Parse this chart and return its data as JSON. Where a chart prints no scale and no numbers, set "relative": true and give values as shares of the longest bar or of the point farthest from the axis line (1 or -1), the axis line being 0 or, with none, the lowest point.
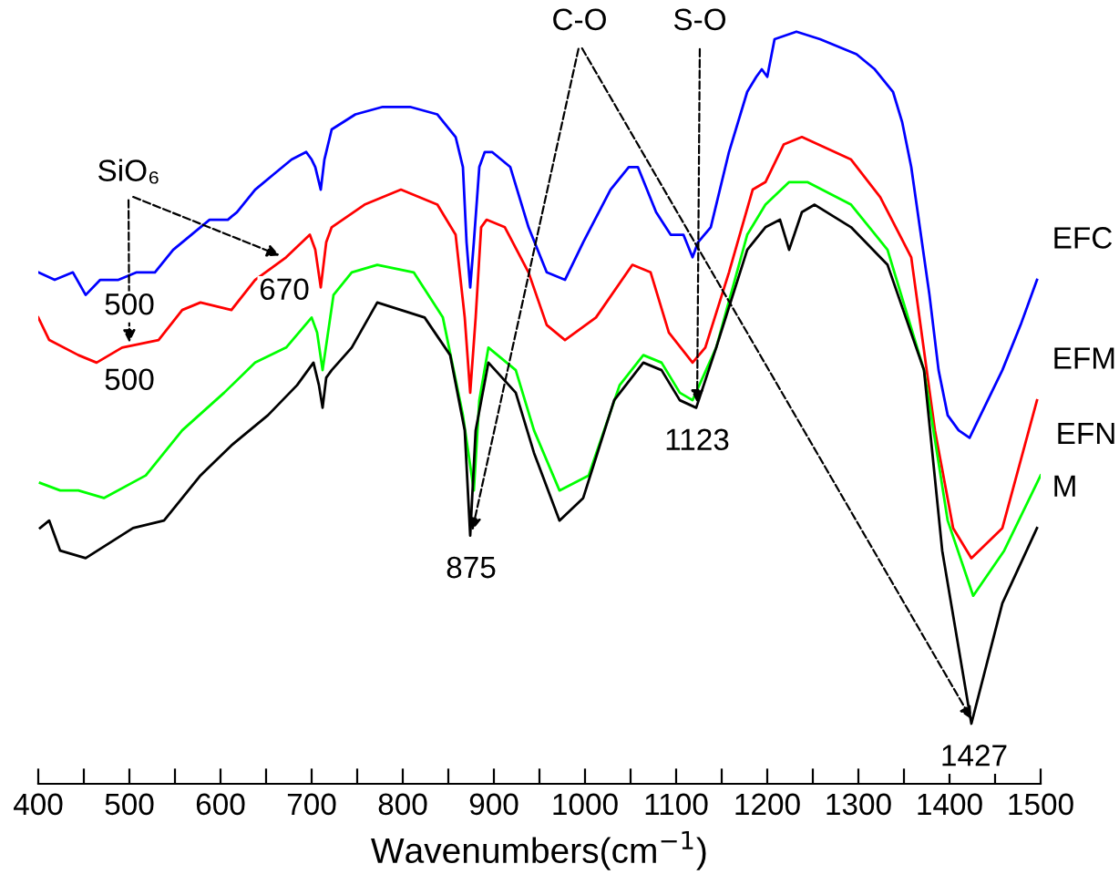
{
  "chart_data": {
    "type": "line",
    "relative": true,
    "xlabel": "Wavenumbers(cm$^{−1}$)",
    "xlim": [
      400,
      1500
    ],
    "xticks": [
      400,
      {
        "value": 450,
        "label": null
      },
      500,
      {
        "value": 550,
        "label": null
      },
      600,
      {
        "value": 650,
        "label": null
      },
      700,
      {
        "value": 750,
        "label": null
      },
      800,
      {
        "value": 850,
        "label": null
      },
      900,
      {
        "value": 950,
        "label": null
      },
      1000,
      {
        "value": 1050,
        "label": null
      },
      1100,
      {
        "value": 1150,
        "label": null
      },
      1200,
      {
        "value": 1250,
        "label": null
      },
      1300,
      {
        "value": 1350,
        "label": null
      },
      1400,
      {
        "value": 1450,
        "label": null
      },
      1500
    ],
    "tick_labels": "x",
    "series": [
      {
        "name": "EFC",
        "color": "#0000ff",
        "x": [
          400,
          418,
          438,
          452,
          468,
          488,
          508,
          528,
          548,
          568,
          588,
          608,
          618,
          638,
          658,
          678,
          694,
          700,
          704,
          710,
          714,
          722,
          748,
          778,
          808,
          838,
          858,
          866,
          870,
          874,
          878,
          884,
          890,
          898,
          918,
          938,
          958,
          978,
          998,
          1028,
          1048,
          1058,
          1078,
          1094,
          1108,
          1118,
          1124,
          1138,
          1158,
          1178,
          1188,
          1194,
          1200,
          1208,
          1232,
          1258,
          1298,
          1318,
          1338,
          1348,
          1358,
          1378,
          1388,
          1398,
          1410,
          1422,
          1438,
          1458,
          1478,
          1496
        ],
        "values": [
          0.68,
          0.67,
          0.68,
          0.65,
          0.67,
          0.67,
          0.68,
          0.68,
          0.71,
          0.73,
          0.75,
          0.75,
          0.76,
          0.79,
          0.81,
          0.83,
          0.84,
          0.83,
          0.82,
          0.79,
          0.83,
          0.87,
          0.89,
          0.9,
          0.9,
          0.89,
          0.86,
          0.82,
          0.72,
          0.66,
          0.72,
          0.82,
          0.84,
          0.84,
          0.82,
          0.74,
          0.68,
          0.67,
          0.72,
          0.79,
          0.82,
          0.82,
          0.76,
          0.73,
          0.73,
          0.7,
          0.72,
          0.74,
          0.84,
          0.92,
          0.94,
          0.95,
          0.94,
          0.99,
          1.0,
          0.99,
          0.97,
          0.95,
          0.92,
          0.88,
          0.82,
          0.65,
          0.55,
          0.49,
          0.47,
          0.46,
          0.5,
          0.55,
          0.61,
          0.67
        ]
      },
      {
        "name": "EFM",
        "color": "#ff0000",
        "x": [
          400,
          412,
          444,
          464,
          492,
          532,
          558,
          578,
          612,
          638,
          672,
          698,
          704,
          710,
          716,
          722,
          758,
          798,
          838,
          858,
          868,
          874,
          880,
          886,
          892,
          912,
          938,
          958,
          978,
          1012,
          1052,
          1072,
          1092,
          1118,
          1132,
          1158,
          1184,
          1198,
          1218,
          1238,
          1292,
          1324,
          1358,
          1384,
          1404,
          1424,
          1458,
          1496
        ],
        "values": [
          0.62,
          0.59,
          0.57,
          0.56,
          0.58,
          0.59,
          0.63,
          0.64,
          0.63,
          0.67,
          0.7,
          0.73,
          0.71,
          0.66,
          0.72,
          0.74,
          0.77,
          0.79,
          0.77,
          0.73,
          0.62,
          0.52,
          0.62,
          0.74,
          0.75,
          0.74,
          0.68,
          0.61,
          0.59,
          0.62,
          0.69,
          0.68,
          0.6,
          0.56,
          0.58,
          0.68,
          0.79,
          0.8,
          0.85,
          0.86,
          0.83,
          0.78,
          0.7,
          0.47,
          0.34,
          0.3,
          0.34,
          0.51
        ]
      },
      {
        "name": "EFN",
        "color": "#00ff00",
        "x": [
          402,
          424,
          444,
          472,
          518,
          558,
          604,
          638,
          672,
          700,
          706,
          712,
          718,
          724,
          744,
          772,
          812,
          844,
          866,
          878,
          884,
          894,
          924,
          944,
          972,
          1004,
          1038,
          1064,
          1084,
          1104,
          1118,
          1144,
          1178,
          1198,
          1224,
          1244,
          1292,
          1332,
          1372,
          1398,
          1426,
          1460,
          1500
        ],
        "values": [
          0.4,
          0.39,
          0.39,
          0.38,
          0.41,
          0.47,
          0.52,
          0.56,
          0.58,
          0.62,
          0.6,
          0.55,
          0.6,
          0.65,
          0.68,
          0.69,
          0.68,
          0.62,
          0.49,
          0.39,
          0.51,
          0.58,
          0.55,
          0.47,
          0.39,
          0.41,
          0.53,
          0.57,
          0.56,
          0.52,
          0.51,
          0.58,
          0.73,
          0.77,
          0.8,
          0.8,
          0.77,
          0.71,
          0.55,
          0.35,
          0.25,
          0.31,
          0.41
        ]
      },
      {
        "name": "M",
        "color": "#000000",
        "x": [
          402,
          412,
          424,
          452,
          478,
          504,
          538,
          578,
          612,
          652,
          684,
          702,
          708,
          712,
          716,
          722,
          744,
          772,
          798,
          824,
          852,
          868,
          874,
          880,
          894,
          924,
          944,
          972,
          998,
          1032,
          1064,
          1084,
          1104,
          1122,
          1144,
          1178,
          1198,
          1214,
          1224,
          1238,
          1252,
          1292,
          1332,
          1372,
          1392,
          1424,
          1458,
          1496
        ],
        "values": [
          0.34,
          0.35,
          0.31,
          0.3,
          0.32,
          0.34,
          0.35,
          0.41,
          0.45,
          0.49,
          0.53,
          0.56,
          0.53,
          0.5,
          0.54,
          0.55,
          0.58,
          0.64,
          0.63,
          0.62,
          0.57,
          0.47,
          0.33,
          0.47,
          0.56,
          0.52,
          0.44,
          0.35,
          0.38,
          0.51,
          0.56,
          0.55,
          0.51,
          0.5,
          0.58,
          0.71,
          0.74,
          0.75,
          0.71,
          0.76,
          0.77,
          0.74,
          0.69,
          0.55,
          0.31,
          0.08,
          0.24,
          0.34
        ]
      }
    ],
    "annotations": [
      "SiO₆",
      {
        "text": "500",
        "x": 500,
        "y": 0.68
      },
      {
        "text": "500",
        "x": 500,
        "y": 0.58
      },
      {
        "text": "670",
        "x": 670,
        "y": 0.7
      },
      "C-O",
      {
        "text": "875",
        "x": 875,
        "y": 0.33
      },
      "S-O",
      {
        "text": "1123",
        "x": 1123,
        "y": 0.5
      },
      {
        "text": "1427",
        "x": 1427,
        "y": 0.08
      }
    ]
  }
}
